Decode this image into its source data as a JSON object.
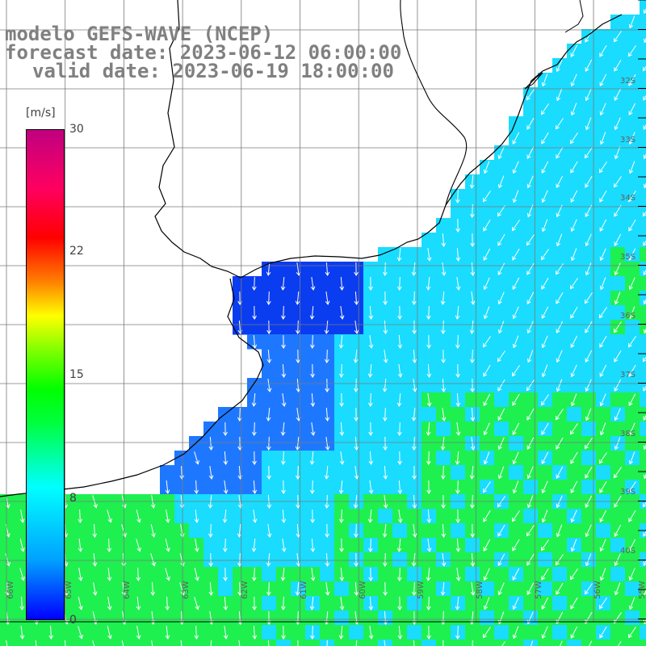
{
  "header": {
    "model_line": "modelo GEFS-WAVE (NCEP)",
    "forecast_line": "forecast date: 2023-06-12 06:00:00",
    "valid_line": "valid date: 2023-06-19 18:00:00"
  },
  "colorbar": {
    "units": "[m/s]",
    "ticks": [
      {
        "label": "30",
        "value": 30
      },
      {
        "label": "22",
        "value": 22
      },
      {
        "label": "15",
        "value": 15
      },
      {
        "label": "8",
        "value": 8
      },
      {
        "label": "0",
        "value": 0
      }
    ],
    "range": [
      0,
      30
    ]
  },
  "map": {
    "lat_labels": [
      "32S",
      "33S",
      "34S",
      "35S",
      "36S",
      "37S",
      "38S",
      "39S",
      "40S"
    ],
    "lon_labels": [
      "66W",
      "65W",
      "64W",
      "63W",
      "62W",
      "61W",
      "60W",
      "59W",
      "58W",
      "57W",
      "56W",
      "55W"
    ],
    "colors": {
      "deep_blue": "#0a3cf0",
      "blue": "#1e78ff",
      "cyan": "#19dcff",
      "green": "#1ef050",
      "coast": "#000000",
      "grid": "#7a7a7a",
      "arrow": "#ffffff"
    },
    "field": "wind speed [m/s] with direction arrows",
    "dominant_direction": "southward"
  }
}
